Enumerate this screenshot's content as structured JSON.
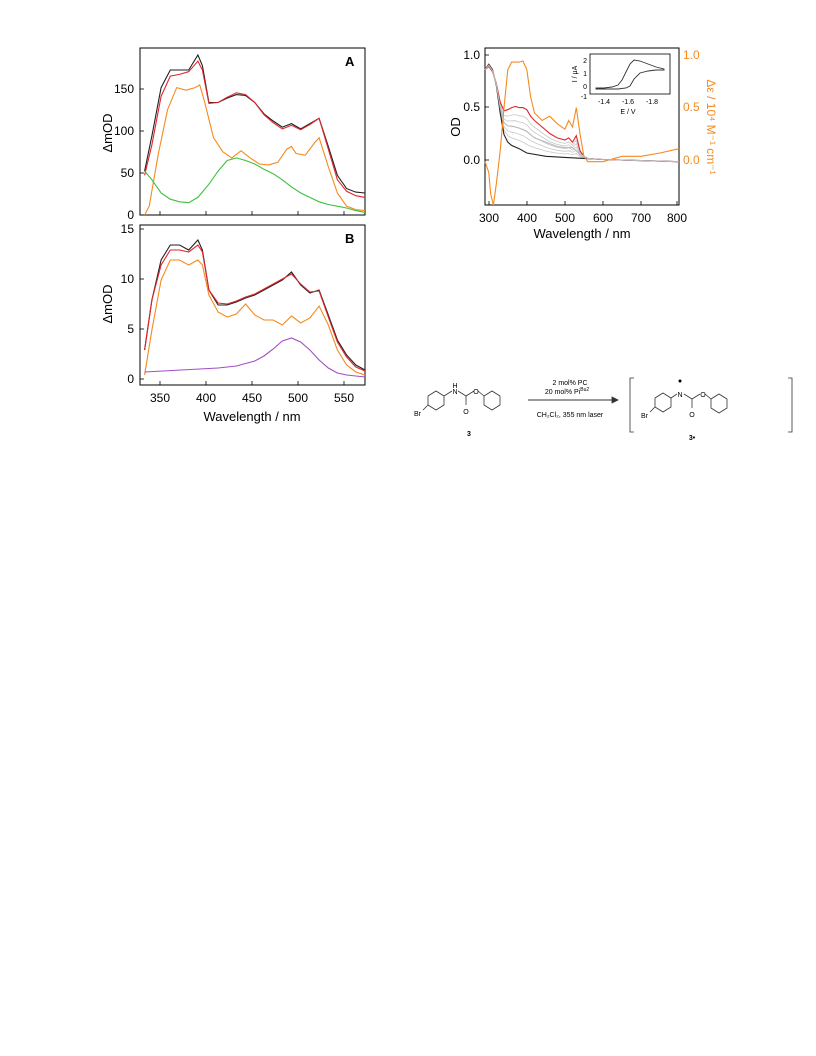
{
  "panelA": {
    "label": "A",
    "ylabel": "ΔmOD",
    "yticks": [
      "0",
      "50",
      "100",
      "150"
    ],
    "chart_data": {
      "type": "line",
      "xlim": [
        335,
        580
      ],
      "ylim": [
        0,
        190
      ],
      "series": [
        {
          "color": "#222222",
          "x": [
            340,
            348,
            358,
            368,
            378,
            388,
            398,
            403,
            410,
            420,
            430,
            440,
            450,
            460,
            470,
            480,
            490,
            500,
            510,
            520,
            530,
            540,
            550,
            560,
            570,
            580
          ],
          "y": [
            50,
            90,
            145,
            165,
            165,
            165,
            182,
            170,
            128,
            128,
            133,
            137,
            136,
            128,
            115,
            107,
            100,
            104,
            98,
            104,
            110,
            78,
            45,
            30,
            26,
            25
          ]
        },
        {
          "color": "#e0242b",
          "x": [
            340,
            348,
            358,
            368,
            378,
            388,
            398,
            403,
            410,
            420,
            430,
            440,
            450,
            460,
            470,
            480,
            490,
            500,
            510,
            520,
            530,
            540,
            550,
            560,
            570,
            580
          ],
          "y": [
            45,
            80,
            135,
            158,
            160,
            163,
            175,
            165,
            127,
            128,
            134,
            139,
            137,
            128,
            114,
            105,
            98,
            102,
            97,
            103,
            110,
            75,
            40,
            27,
            22,
            20
          ]
        },
        {
          "color": "#f58a1e",
          "x": [
            340,
            345,
            355,
            365,
            375,
            385,
            395,
            400,
            405,
            415,
            425,
            435,
            445,
            455,
            465,
            475,
            485,
            495,
            500,
            505,
            515,
            525,
            530,
            540,
            550,
            560,
            570,
            580
          ],
          "y": [
            0,
            10,
            70,
            120,
            145,
            142,
            145,
            148,
            130,
            88,
            72,
            65,
            73,
            65,
            58,
            57,
            60,
            75,
            78,
            70,
            68,
            82,
            88,
            55,
            25,
            10,
            6,
            5
          ]
        },
        {
          "color": "#3ec13c",
          "x": [
            340,
            348,
            358,
            368,
            378,
            388,
            398,
            410,
            420,
            430,
            440,
            450,
            460,
            470,
            480,
            490,
            500,
            510,
            520,
            530,
            540,
            550,
            560,
            570,
            580
          ],
          "y": [
            50,
            40,
            25,
            18,
            15,
            14,
            20,
            35,
            50,
            62,
            65,
            62,
            58,
            52,
            47,
            40,
            32,
            25,
            20,
            15,
            12,
            10,
            8,
            5,
            3
          ]
        }
      ]
    }
  },
  "panelB": {
    "label": "B",
    "ylabel": "ΔmOD",
    "xlabel": "Wavelength / nm",
    "xticks": [
      "350",
      "400",
      "450",
      "500",
      "550"
    ],
    "yticks": [
      "0",
      "5",
      "10",
      "15"
    ],
    "chart_data": {
      "type": "line",
      "xlim": [
        335,
        580
      ],
      "ylim": [
        -0.5,
        15.5
      ],
      "series": [
        {
          "color": "#222222",
          "x": [
            340,
            348,
            358,
            368,
            378,
            388,
            398,
            403,
            410,
            420,
            430,
            440,
            450,
            460,
            470,
            480,
            490,
            500,
            510,
            520,
            530,
            540,
            550,
            560,
            570,
            580
          ],
          "y": [
            3,
            8,
            12,
            13.5,
            13.5,
            13,
            14,
            13,
            9,
            7.5,
            7.5,
            7.8,
            8.2,
            8.5,
            9,
            9.5,
            10,
            10.8,
            9.5,
            8.7,
            9,
            6.5,
            4,
            2.5,
            1.5,
            1
          ]
        },
        {
          "color": "#e0242b",
          "x": [
            340,
            348,
            358,
            368,
            378,
            388,
            398,
            403,
            410,
            420,
            430,
            440,
            450,
            460,
            470,
            480,
            490,
            500,
            510,
            520,
            530,
            540,
            550,
            560,
            570,
            580
          ],
          "y": [
            3,
            8,
            11.5,
            13,
            13,
            12.8,
            13.5,
            12.8,
            9,
            7.7,
            7.6,
            7.9,
            8.3,
            8.6,
            9.1,
            9.6,
            10.1,
            10.6,
            9.6,
            8.8,
            8.9,
            6.3,
            3.8,
            2.3,
            1.3,
            0.9
          ]
        },
        {
          "color": "#f58a1e",
          "x": [
            340,
            348,
            358,
            368,
            378,
            388,
            398,
            403,
            410,
            420,
            430,
            440,
            450,
            460,
            470,
            480,
            490,
            500,
            510,
            520,
            530,
            540,
            550,
            560,
            570,
            580
          ],
          "y": [
            0.5,
            5,
            10,
            12,
            12,
            11.5,
            12,
            11.5,
            8.5,
            6.8,
            6.3,
            6.6,
            7.6,
            6.5,
            6,
            6,
            5.5,
            6.4,
            5.7,
            6.2,
            7.4,
            5.5,
            3,
            1.5,
            0.8,
            0.5
          ]
        },
        {
          "color": "#a24ec4",
          "x": [
            340,
            360,
            380,
            400,
            420,
            440,
            460,
            470,
            480,
            490,
            500,
            510,
            520,
            530,
            540,
            550,
            560,
            570,
            580
          ],
          "y": [
            0.8,
            0.9,
            1,
            1.1,
            1.2,
            1.4,
            1.9,
            2.4,
            3.1,
            3.9,
            4.2,
            3.8,
            3,
            2,
            1.2,
            0.7,
            0.5,
            0.4,
            0.3
          ]
        }
      ]
    }
  },
  "panelC": {
    "xlabel": "Wavelength / nm",
    "ylabel_left": "OD",
    "ylabel_right": "Δε / 10⁴ M⁻¹ cm⁻¹",
    "xticks": [
      "300",
      "400",
      "500",
      "600",
      "700",
      "800"
    ],
    "yticks_left": [
      "0.0",
      "0.5",
      "1.0"
    ],
    "yticks_right": [
      "0.0",
      "0.5",
      "1.0"
    ],
    "chart_data": {
      "type": "line",
      "xlim": [
        290,
        800
      ],
      "ylim": [
        -0.4,
        1.05
      ],
      "series": [
        {
          "color": "#222222",
          "x": [
            290,
            300,
            310,
            320,
            330,
            340,
            350,
            360,
            380,
            400,
            450,
            500,
            550,
            600,
            700,
            800
          ],
          "y": [
            0.85,
            0.9,
            0.85,
            0.7,
            0.45,
            0.25,
            0.18,
            0.15,
            0.12,
            0.08,
            0.05,
            0.04,
            0.03,
            0.02,
            0.01,
            0.0
          ]
        },
        {
          "color": "#e0242b",
          "x": [
            290,
            300,
            310,
            320,
            330,
            340,
            350,
            360,
            370,
            380,
            390,
            400,
            410,
            420,
            440,
            460,
            480,
            500,
            510,
            520,
            530,
            540,
            550,
            560,
            600,
            700,
            800
          ],
          "y": [
            0.85,
            0.88,
            0.83,
            0.72,
            0.55,
            0.47,
            0.48,
            0.5,
            0.51,
            0.5,
            0.5,
            0.48,
            0.42,
            0.38,
            0.32,
            0.26,
            0.22,
            0.2,
            0.22,
            0.18,
            0.24,
            0.1,
            0.05,
            0.03,
            0.02,
            0.01,
            0.0
          ]
        },
        {
          "color": "#f58a1e",
          "x": [
            290,
            300,
            305,
            312,
            320,
            330,
            340,
            350,
            360,
            370,
            380,
            390,
            400,
            410,
            420,
            440,
            460,
            480,
            500,
            510,
            520,
            530,
            540,
            550,
            560,
            600,
            650,
            700,
            750,
            800
          ],
          "y": [
            0.0,
            -0.1,
            -0.3,
            -0.4,
            -0.2,
            0.1,
            0.5,
            0.85,
            0.92,
            0.92,
            0.92,
            0.93,
            0.85,
            0.6,
            0.45,
            0.38,
            0.42,
            0.35,
            0.3,
            0.38,
            0.32,
            0.5,
            0.25,
            0.05,
            0.0,
            0.0,
            0.05,
            0.05,
            0.08,
            0.12
          ]
        },
        {
          "color": "#bbbbbb",
          "x": [
            290,
            300,
            310,
            320,
            330,
            340,
            350,
            360,
            380,
            400,
            420,
            450,
            480,
            500,
            520,
            540,
            560,
            600,
            700,
            800
          ],
          "y": [
            0.85,
            0.89,
            0.84,
            0.71,
            0.5,
            0.36,
            0.33,
            0.33,
            0.31,
            0.28,
            0.22,
            0.18,
            0.14,
            0.13,
            0.13,
            0.07,
            0.03,
            0.02,
            0.01,
            0.0
          ]
        }
      ]
    },
    "inset": {
      "xlabel": "E / V",
      "ylabel": "I / μA",
      "xticks": [
        "-1.4",
        "-1.6",
        "-1.8"
      ],
      "yticks": [
        "-1",
        "0",
        "1",
        "2"
      ]
    }
  },
  "scheme": {
    "reagent_line1": "2 mol% PC",
    "reagent_line2": "20 mol% Pi",
    "reagent_line2_sup": "Bu2",
    "conditions": "CH₂Cl₂, 355 nm laser",
    "compound_left": "3",
    "compound_right": "3•",
    "atom_h": "H",
    "atom_n": "N",
    "atom_o1": "O",
    "atom_o2": "O",
    "atom_br": "Br",
    "atom_n2": "N",
    "atom_o3": "O",
    "atom_o4": "O",
    "atom_br2": "Br"
  }
}
